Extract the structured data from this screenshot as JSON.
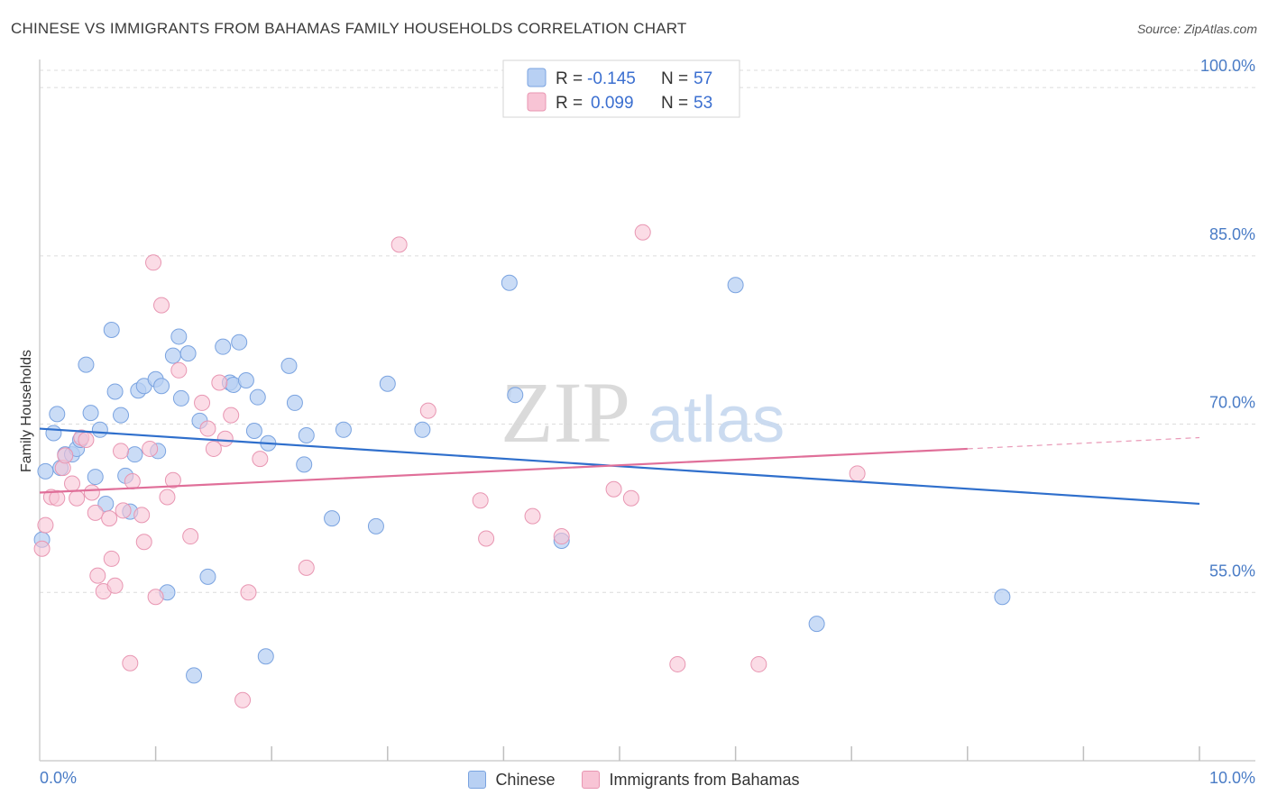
{
  "title": "CHINESE VS IMMIGRANTS FROM BAHAMAS FAMILY HOUSEHOLDS CORRELATION CHART",
  "source": "Source: ZipAtlas.com",
  "watermark": {
    "zip": "ZIP",
    "atlas": "atlas"
  },
  "colors": {
    "blue_fill": "#b8d0f3",
    "blue_stroke": "#7aa3e0",
    "blue_line": "#2f6fcc",
    "pink_fill": "#f8c4d5",
    "pink_stroke": "#e896b2",
    "pink_line": "#e06f99",
    "grid": "#dcdcdc",
    "tick_text": "#4a7cc6"
  },
  "legend": {
    "rows": [
      {
        "r_label": "R =",
        "r_value": "-0.145",
        "n_label": "N =",
        "n_value": "57"
      },
      {
        "r_label": "R =",
        "r_value": "0.099",
        "n_label": "N =",
        "n_value": "53"
      }
    ]
  },
  "bottom_legend": {
    "chinese": "Chinese",
    "bahamas": "Immigrants from Bahamas"
  },
  "chart_data": {
    "type": "scatter",
    "title": "CHINESE VS IMMIGRANTS FROM BAHAMAS FAMILY HOUSEHOLDS CORRELATION CHART",
    "xlabel": "",
    "ylabel": "Family Households",
    "xlim": [
      0,
      10
    ],
    "ylim": [
      40,
      102.5
    ],
    "x_tick_labels": [
      "0.0%",
      "10.0%"
    ],
    "y_ticks": [
      55,
      70,
      85,
      100
    ],
    "y_tick_labels": [
      "55.0%",
      "70.0%",
      "85.0%",
      "100.0%"
    ],
    "series": [
      {
        "name": "Chinese",
        "r": -0.145,
        "n": 57,
        "trend": {
          "x": [
            0,
            10
          ],
          "y": [
            69.6,
            62.9
          ]
        },
        "points": [
          [
            0.05,
            65.8
          ],
          [
            0.12,
            69.2
          ],
          [
            0.15,
            70.9
          ],
          [
            0.18,
            66.1
          ],
          [
            0.22,
            67.3
          ],
          [
            0.28,
            67.3
          ],
          [
            0.32,
            67.8
          ],
          [
            0.35,
            68.6
          ],
          [
            0.4,
            75.3
          ],
          [
            0.44,
            71.0
          ],
          [
            0.48,
            65.3
          ],
          [
            0.52,
            69.5
          ],
          [
            0.57,
            62.9
          ],
          [
            0.62,
            78.4
          ],
          [
            0.65,
            72.9
          ],
          [
            0.7,
            70.8
          ],
          [
            0.74,
            65.4
          ],
          [
            0.78,
            62.2
          ],
          [
            0.82,
            67.3
          ],
          [
            0.85,
            73.0
          ],
          [
            0.9,
            73.4
          ],
          [
            1.0,
            74.0
          ],
          [
            1.02,
            67.6
          ],
          [
            1.05,
            73.4
          ],
          [
            1.1,
            55.0
          ],
          [
            1.15,
            76.1
          ],
          [
            1.2,
            77.8
          ],
          [
            1.22,
            72.3
          ],
          [
            1.28,
            76.3
          ],
          [
            1.33,
            47.6
          ],
          [
            1.38,
            70.3
          ],
          [
            1.45,
            56.4
          ],
          [
            1.58,
            76.9
          ],
          [
            1.64,
            73.7
          ],
          [
            1.67,
            73.5
          ],
          [
            1.72,
            77.3
          ],
          [
            1.78,
            73.9
          ],
          [
            1.85,
            69.4
          ],
          [
            1.88,
            72.4
          ],
          [
            1.97,
            68.3
          ],
          [
            1.95,
            49.3
          ],
          [
            2.15,
            75.2
          ],
          [
            2.2,
            71.9
          ],
          [
            2.28,
            66.4
          ],
          [
            2.3,
            69.0
          ],
          [
            2.52,
            61.6
          ],
          [
            2.62,
            69.5
          ],
          [
            2.9,
            60.9
          ],
          [
            3.0,
            73.6
          ],
          [
            3.3,
            69.5
          ],
          [
            4.05,
            82.6
          ],
          [
            4.1,
            72.6
          ],
          [
            4.5,
            59.6
          ],
          [
            6.0,
            82.4
          ],
          [
            6.7,
            52.2
          ],
          [
            8.3,
            54.6
          ],
          [
            0.02,
            59.7
          ]
        ]
      },
      {
        "name": "Immigrants from Bahamas",
        "r": 0.099,
        "n": 53,
        "trend": {
          "x": [
            0,
            8
          ],
          "y": [
            63.9,
            67.8
          ]
        },
        "trend_dashed": {
          "x": [
            8,
            10
          ],
          "y": [
            67.8,
            68.8
          ]
        },
        "points": [
          [
            0.02,
            58.9
          ],
          [
            0.05,
            61.0
          ],
          [
            0.1,
            63.5
          ],
          [
            0.15,
            63.4
          ],
          [
            0.2,
            66.1
          ],
          [
            0.22,
            67.2
          ],
          [
            0.28,
            64.7
          ],
          [
            0.32,
            63.4
          ],
          [
            0.36,
            68.8
          ],
          [
            0.4,
            68.6
          ],
          [
            0.45,
            63.9
          ],
          [
            0.48,
            62.1
          ],
          [
            0.5,
            56.5
          ],
          [
            0.55,
            55.1
          ],
          [
            0.6,
            61.6
          ],
          [
            0.62,
            58.0
          ],
          [
            0.65,
            55.6
          ],
          [
            0.7,
            67.6
          ],
          [
            0.72,
            62.3
          ],
          [
            0.78,
            48.7
          ],
          [
            0.8,
            64.9
          ],
          [
            0.88,
            61.9
          ],
          [
            0.9,
            59.5
          ],
          [
            0.95,
            67.8
          ],
          [
            0.98,
            84.4
          ],
          [
            1.0,
            54.6
          ],
          [
            1.05,
            80.6
          ],
          [
            1.1,
            63.5
          ],
          [
            1.15,
            65.0
          ],
          [
            1.2,
            74.8
          ],
          [
            1.3,
            60.0
          ],
          [
            1.4,
            71.9
          ],
          [
            1.45,
            69.6
          ],
          [
            1.5,
            67.8
          ],
          [
            1.55,
            73.7
          ],
          [
            1.6,
            68.7
          ],
          [
            1.65,
            70.8
          ],
          [
            1.75,
            45.4
          ],
          [
            1.8,
            55.0
          ],
          [
            1.9,
            66.9
          ],
          [
            2.3,
            57.2
          ],
          [
            3.1,
            86.0
          ],
          [
            3.35,
            71.2
          ],
          [
            3.8,
            63.2
          ],
          [
            3.85,
            59.8
          ],
          [
            4.25,
            61.8
          ],
          [
            4.5,
            60.0
          ],
          [
            4.95,
            64.2
          ],
          [
            5.1,
            63.4
          ],
          [
            5.2,
            87.1
          ],
          [
            5.5,
            48.6
          ],
          [
            7.05,
            65.6
          ],
          [
            6.2,
            48.6
          ]
        ]
      }
    ]
  }
}
